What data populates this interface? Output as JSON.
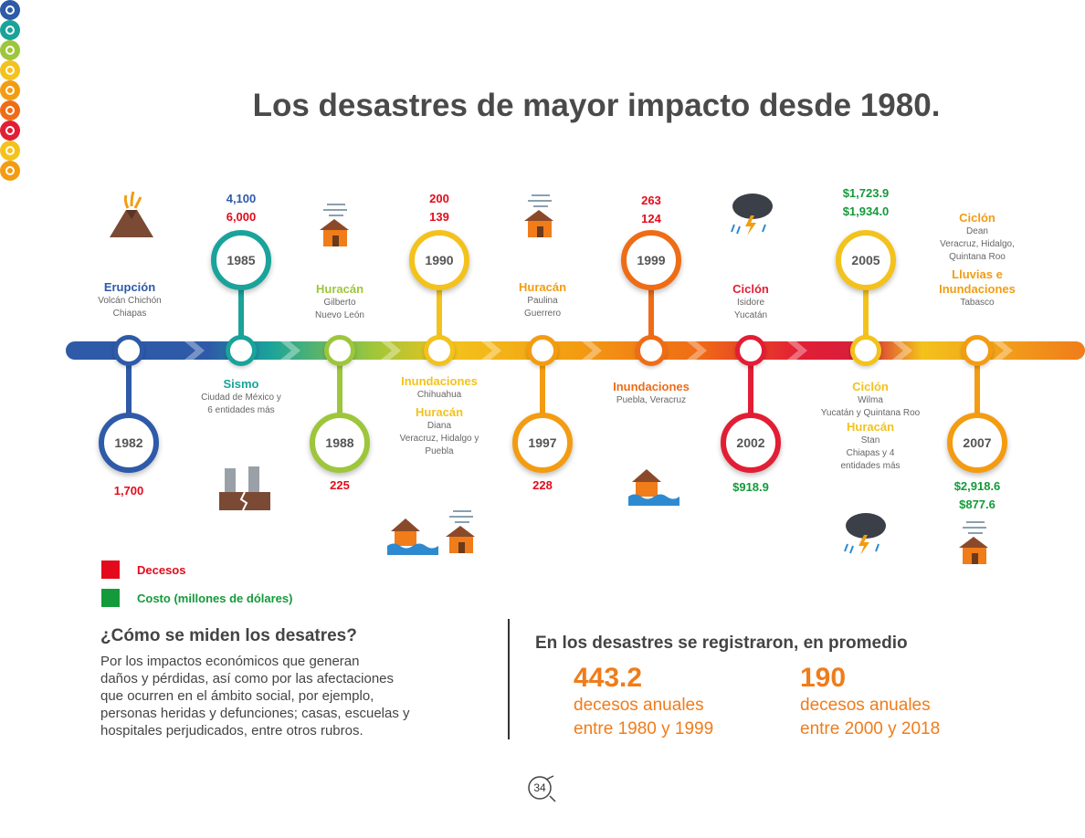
{
  "title": "Los desastres de mayor impacto desde 1980.",
  "colors": {
    "deaths": "#e30b1b",
    "cost": "#149a3a",
    "accent": "#f07c1a"
  },
  "timeline": {
    "e1982": {
      "year": "1982",
      "type": "Erupción",
      "place1": "Volcán Chichón",
      "place2": "Chiapas",
      "deaths": "1,700"
    },
    "e1985": {
      "year": "1985",
      "type": "Sismo",
      "place1": "Ciudad de México y",
      "place2": "6 entidades más",
      "deaths_a": "4,100",
      "deaths_b": "6,000"
    },
    "e1988": {
      "year": "1988",
      "type": "Huracán",
      "place1": "Gilberto",
      "place2": "Nuevo León",
      "deaths": "225"
    },
    "e1990": {
      "year": "1990",
      "type": "Inundaciones",
      "place1": "Chihuahua",
      "type2": "Huracán",
      "place2": "Diana",
      "place3": "Veracruz, Hidalgo y",
      "place4": "Puebla",
      "deaths_a": "200",
      "deaths_b": "139"
    },
    "e1997": {
      "year": "1997",
      "type": "Huracán",
      "place1": "Paulina",
      "place2": "Guerrero",
      "deaths": "228"
    },
    "e1999": {
      "year": "1999",
      "type": "Inundaciones",
      "place1": "Puebla, Veracruz",
      "deaths_a": "263",
      "deaths_b": "124"
    },
    "e2002": {
      "year": "2002",
      "type": "Ciclón",
      "place1": "Isidore",
      "place2": "Yucatán",
      "cost": "$918.9"
    },
    "e2005": {
      "year": "2005",
      "type": "Ciclón",
      "place1": "Wilma",
      "place2": "Yucatán y Quintana Roo",
      "type2": "Huracán",
      "place3": "Stan",
      "place4": "Chiapas y 4",
      "place5": "entidades más",
      "cost_a": "$1,723.9",
      "cost_b": "$1,934.0"
    },
    "e2007": {
      "year": "2007",
      "type": "Ciclón",
      "place1": "Dean",
      "place2": "Veracruz, Hidalgo,",
      "place3": "Quintana Roo",
      "type2": "Lluvias e",
      "type3": "Inundaciones",
      "place4": "Tabasco",
      "cost_a": "$2,918.6",
      "cost_b": "$877.6"
    }
  },
  "legend": {
    "deaths": "Decesos",
    "cost": "Costo (millones de dólares)"
  },
  "measure": {
    "heading": "¿Cómo se miden los desatres?",
    "lines": [
      "Por los impactos económicos que generan",
      "daños y pérdidas, así como por las afectaciones",
      "que ocurren en el ámbito social, por ejemplo,",
      "personas heridas y defunciones; casas, escuelas y",
      "hospitales perjudicados, entre otros rubros."
    ]
  },
  "stats": {
    "heading": "En los desastres se registraron, en promedio",
    "s1": {
      "value": "443.2",
      "line1": "decesos anuales",
      "line2": "entre 1980 y 1999"
    },
    "s2": {
      "value": "190",
      "line1": "decesos anuales",
      "line2": "entre 2000 y 2018"
    }
  },
  "page_number": "34"
}
